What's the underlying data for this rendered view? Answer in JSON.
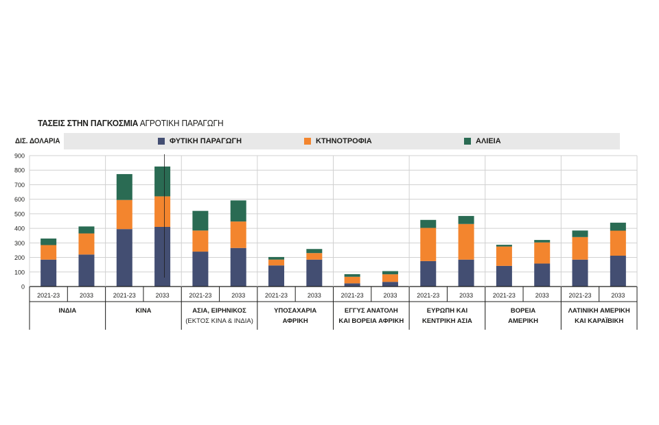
{
  "title": {
    "bold": "ΤΑΣΕΙΣ ΣΤΗΝ ΠΑΓΚΟΣΜΙΑ",
    "light": "ΑΓΡΟΤΙΚΗ ΠΑΡΑΓΩΓΗ"
  },
  "unit_label": "ΔΙΣ. ΔΟΛΑΡΙΑ",
  "colors": {
    "crop": "#434e72",
    "livestock": "#f3852e",
    "fish": "#2a6b53",
    "grid": "#d0d0d0",
    "axis": "#1d1d1b"
  },
  "chart_data": {
    "type": "bar",
    "stacked": true,
    "ylim": [
      0,
      900
    ],
    "yticks": [
      "0",
      "100",
      "200",
      "300",
      "400",
      "500",
      "600",
      "700",
      "800",
      "900"
    ],
    "grid": true,
    "legend_position": "top",
    "series": [
      {
        "name": "ΦΥΤΙΚΗ ΠΑΡΑΓΩΓΗ",
        "color": "#434e72"
      },
      {
        "name": "ΚΤΗΝΟΤΡΟΦΙΑ",
        "color": "#f3852e"
      },
      {
        "name": "ΑΛΙΕΙΑ",
        "color": "#2a6b53"
      }
    ],
    "groups": [
      {
        "label": [
          "ΙΝΔΙΑ"
        ],
        "bars": [
          {
            "period": "2021-23",
            "values": [
              185,
              100,
              45
            ]
          },
          {
            "period": "2033",
            "values": [
              220,
              145,
              48
            ]
          }
        ]
      },
      {
        "label": [
          "ΚΙΝΑ"
        ],
        "bars": [
          {
            "period": "2021-23",
            "values": [
              395,
              200,
              178
            ]
          },
          {
            "period": "2033",
            "values": [
              410,
              210,
              205
            ]
          }
        ]
      },
      {
        "label": [
          "ΑΣΙΑ, ΕΙΡΗΝΙΚΟΣ",
          "(ΕΚΤΟΣ ΚΙΝΑ & ΙΝΔΙΑ)"
        ],
        "bars": [
          {
            "period": "2021-23",
            "values": [
              240,
              145,
              135
            ]
          },
          {
            "period": "2033",
            "values": [
              265,
              182,
              145
            ]
          }
        ]
      },
      {
        "label": [
          "ΥΠΟΣΑΧΑΡΙΑ",
          "ΑΦΡΙΚΗ"
        ],
        "bars": [
          {
            "period": "2021-23",
            "values": [
              145,
              40,
              18
            ]
          },
          {
            "period": "2033",
            "values": [
              185,
              45,
              28
            ]
          }
        ]
      },
      {
        "label": [
          "ΕΓΓΥΣ ΑΝΑΤΟΛΗ",
          "ΚΑΙ ΒΟΡΕΙΑ ΑΦΡΙΚΗ"
        ],
        "bars": [
          {
            "period": "2021-23",
            "values": [
              22,
              45,
              18
            ]
          },
          {
            "period": "2033",
            "values": [
              32,
              52,
              22
            ]
          }
        ]
      },
      {
        "label": [
          "ΕΥΡΩΠΗ ΚΑΙ",
          "ΚΕΝΤΡΙΚΗ ΑΣΙΑ"
        ],
        "bars": [
          {
            "period": "2021-23",
            "values": [
              175,
              228,
              55
            ]
          },
          {
            "period": "2033",
            "values": [
              185,
              245,
              55
            ]
          }
        ]
      },
      {
        "label": [
          "ΒΟΡΕΙΑ",
          "ΑΜΕΡΙΚΗ"
        ],
        "bars": [
          {
            "period": "2021-23",
            "values": [
              142,
              133,
              12
            ]
          },
          {
            "period": "2033",
            "values": [
              158,
              145,
              17
            ]
          }
        ]
      },
      {
        "label": [
          "ΛΑΤΙΝΙΚΗ ΑΜΕΡΙΚΗ",
          "ΚΑΙ ΚΑΡΑΪΒΙΚΗ"
        ],
        "bars": [
          {
            "period": "2021-23",
            "values": [
              185,
              155,
              45
            ]
          },
          {
            "period": "2033",
            "values": [
              212,
              172,
              55
            ]
          }
        ]
      }
    ]
  }
}
